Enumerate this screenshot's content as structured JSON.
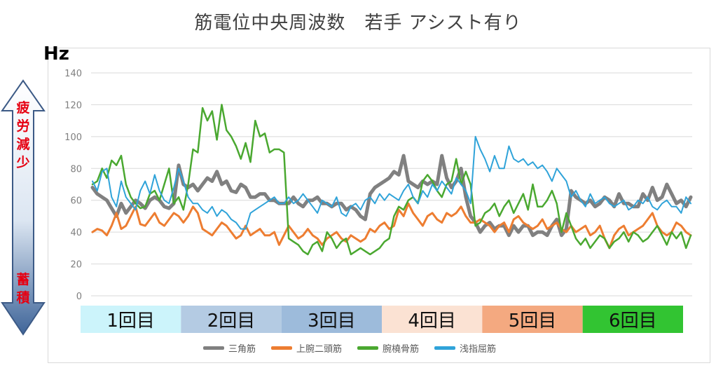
{
  "chart_data": {
    "type": "line",
    "title": "筋電位中央周波数　若手 アシスト有り",
    "ylabel": "Hz",
    "ylim": [
      0,
      140
    ],
    "yticks": [
      0,
      20,
      40,
      60,
      80,
      100,
      120,
      140
    ],
    "grid": true,
    "legend_position": "bottom",
    "side_arrow": {
      "top_label": "疲労減少",
      "bottom_label": "蓄積"
    },
    "segments": [
      {
        "label": "1回目",
        "color": "#ccf4fb"
      },
      {
        "label": "2回目",
        "color": "#b4cbe3"
      },
      {
        "label": "3回目",
        "color": "#9dbbdb"
      },
      {
        "label": "4回目",
        "color": "#fbe2d3"
      },
      {
        "label": "5回目",
        "color": "#f4a980"
      },
      {
        "label": "6回目",
        "color": "#32c432"
      }
    ],
    "series": [
      {
        "name": "三角筋",
        "color": "#808080",
        "width": 5,
        "values": [
          68,
          64,
          62,
          60,
          55,
          50,
          58,
          52,
          56,
          60,
          58,
          55,
          60,
          62,
          60,
          56,
          55,
          58,
          82,
          70,
          68,
          70,
          66,
          70,
          74,
          72,
          78,
          70,
          72,
          66,
          65,
          70,
          68,
          62,
          62,
          64,
          64,
          60,
          60,
          58,
          58,
          58,
          62,
          58,
          56,
          60,
          60,
          62,
          58,
          58,
          56,
          58,
          58,
          54,
          56,
          54,
          50,
          48,
          64,
          68,
          70,
          72,
          74,
          78,
          76,
          88,
          72,
          70,
          68,
          72,
          70,
          72,
          70,
          88,
          74,
          68,
          72,
          80,
          62,
          50,
          46,
          40,
          44,
          46,
          42,
          44,
          44,
          38,
          44,
          40,
          44,
          44,
          38,
          40,
          40,
          38,
          44,
          48,
          38,
          42,
          66,
          62,
          60,
          58,
          60,
          56,
          58,
          62,
          60,
          56,
          64,
          58,
          58,
          56,
          56,
          64,
          60,
          68,
          60,
          62,
          70,
          64,
          58,
          60,
          56,
          62
        ]
      },
      {
        "name": "上腕二頭筋",
        "color": "#ed7d31",
        "width": 3,
        "values": [
          40,
          42,
          41,
          38,
          44,
          52,
          42,
          44,
          50,
          56,
          45,
          44,
          48,
          52,
          46,
          44,
          48,
          52,
          50,
          46,
          50,
          56,
          52,
          42,
          40,
          38,
          42,
          46,
          44,
          40,
          36,
          38,
          44,
          38,
          40,
          42,
          38,
          38,
          40,
          32,
          38,
          44,
          40,
          36,
          38,
          42,
          38,
          36,
          32,
          36,
          38,
          40,
          36,
          34,
          38,
          36,
          34,
          36,
          42,
          40,
          44,
          46,
          42,
          44,
          54,
          50,
          58,
          52,
          48,
          44,
          50,
          52,
          48,
          46,
          52,
          50,
          52,
          56,
          50,
          46,
          46,
          48,
          46,
          44,
          40,
          44,
          46,
          40,
          48,
          50,
          46,
          44,
          42,
          44,
          48,
          42,
          44,
          46,
          42,
          40,
          44,
          40,
          42,
          44,
          38,
          40,
          44,
          36,
          30,
          38,
          42,
          44,
          38,
          40,
          42,
          44,
          48,
          52,
          44,
          40,
          38,
          40,
          46,
          44,
          40,
          38
        ]
      },
      {
        "name": "腕橈骨筋",
        "color": "#4aa830",
        "width": 2.5,
        "values": [
          70,
          72,
          80,
          74,
          85,
          82,
          88,
          70,
          62,
          58,
          55,
          56,
          64,
          66,
          60,
          70,
          80,
          58,
          62,
          54,
          70,
          92,
          90,
          118,
          110,
          116,
          98,
          120,
          104,
          100,
          94,
          86,
          96,
          84,
          110,
          100,
          102,
          90,
          92,
          92,
          90,
          36,
          34,
          32,
          28,
          26,
          32,
          34,
          28,
          40,
          36,
          30,
          34,
          36,
          26,
          28,
          30,
          28,
          26,
          28,
          30,
          34,
          36,
          50,
          56,
          54,
          60,
          62,
          58,
          72,
          76,
          72,
          66,
          62,
          70,
          72,
          86,
          70,
          78,
          70,
          44,
          46,
          52,
          54,
          58,
          50,
          56,
          60,
          52,
          58,
          64,
          54,
          70,
          56,
          56,
          60,
          66,
          58,
          40,
          52,
          44,
          36,
          32,
          36,
          30,
          34,
          38,
          36,
          30,
          34,
          36,
          40,
          34,
          40,
          38,
          34,
          36,
          40,
          44,
          38,
          32,
          40,
          36,
          40,
          30,
          38
        ]
      },
      {
        "name": "浅指屈筋",
        "color": "#2fa3d9",
        "width": 2,
        "values": [
          72,
          66,
          78,
          80,
          62,
          56,
          72,
          62,
          58,
          54,
          66,
          72,
          64,
          76,
          66,
          60,
          58,
          68,
          80,
          72,
          62,
          58,
          58,
          54,
          52,
          56,
          50,
          54,
          52,
          48,
          46,
          42,
          42,
          52,
          54,
          56,
          58,
          60,
          62,
          58,
          58,
          62,
          58,
          60,
          64,
          60,
          56,
          52,
          60,
          58,
          56,
          62,
          52,
          50,
          56,
          58,
          54,
          60,
          62,
          58,
          64,
          60,
          64,
          62,
          60,
          66,
          70,
          62,
          58,
          66,
          62,
          70,
          66,
          72,
          68,
          64,
          74,
          70,
          66,
          58,
          100,
          92,
          86,
          78,
          88,
          80,
          80,
          94,
          86,
          84,
          86,
          82,
          84,
          80,
          82,
          78,
          72,
          80,
          76,
          72,
          62,
          66,
          60,
          56,
          64,
          58,
          60,
          62,
          58,
          56,
          58,
          60,
          54,
          56,
          60,
          58,
          62,
          56,
          54,
          58,
          60,
          56,
          56,
          52,
          62,
          58
        ]
      }
    ]
  }
}
